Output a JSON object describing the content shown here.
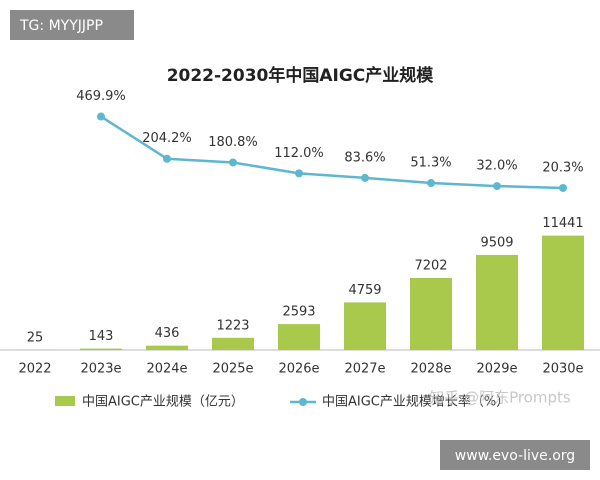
{
  "chart_data": {
    "type": "bar-line",
    "title": "2022-2030年中国AIGC产业规模",
    "categories": [
      "2022",
      "2023e",
      "2024e",
      "2025e",
      "2026e",
      "2027e",
      "2028e",
      "2029e",
      "2030e"
    ],
    "series": [
      {
        "name": "中国AIGC产业规模（亿元）",
        "color": "#a9c94c",
        "type": "bar",
        "values": [
          25,
          143,
          436,
          1223,
          2593,
          4759,
          7202,
          9509,
          11441
        ]
      },
      {
        "name": "中国AIGC产业规模增长率（%）",
        "color": "#5db7cf",
        "type": "line",
        "axis": "y2",
        "values": [
          null,
          469.9,
          204.2,
          180.8,
          112.0,
          83.6,
          51.3,
          32.0,
          20.3
        ],
        "value_labels": [
          null,
          "469.9%",
          "204.2%",
          "180.8%",
          "112.0%",
          "83.6%",
          "51.3%",
          "32.0%",
          "20.3%"
        ]
      }
    ],
    "ylim": [
      0,
      27000
    ],
    "y2lim": [
      -1000,
      700
    ],
    "legend": "bottom"
  },
  "overlays": {
    "tag": "TG: MYYJJPP",
    "site": "www.evo-live.org",
    "watermark": "知乎 @阿东Prompts"
  }
}
